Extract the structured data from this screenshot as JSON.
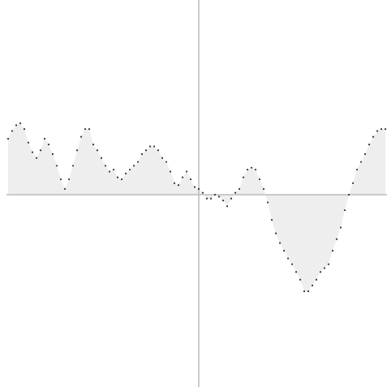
{
  "chart_data": {
    "type": "area",
    "x": [
      -235,
      -230,
      -225,
      -220,
      -215,
      -210,
      -205,
      -200,
      -195,
      -190,
      -185,
      -180,
      -175,
      -170,
      -165,
      -160,
      -155,
      -150,
      -145,
      -140,
      -135,
      -130,
      -125,
      -120,
      -115,
      -110,
      -105,
      -100,
      -95,
      -90,
      -85,
      -80,
      -75,
      -70,
      -65,
      -60,
      -55,
      -50,
      -45,
      -40,
      -35,
      -30,
      -25,
      -20,
      -15,
      -10,
      -5,
      0,
      5,
      10,
      15,
      20,
      25,
      30,
      35,
      40,
      45,
      50,
      55,
      60,
      65,
      70,
      75,
      80,
      85,
      90,
      95,
      100,
      105,
      110,
      115,
      120,
      125,
      130,
      135,
      140,
      145,
      150,
      155,
      160,
      165,
      170,
      175,
      180,
      185,
      190,
      195,
      200,
      205,
      210,
      215,
      220,
      225,
      230
    ],
    "series": [
      {
        "color": "#333333",
        "fill": "#eeeeee",
        "values": [
          0.29,
          0.33,
          0.36,
          0.37,
          0.34,
          0.27,
          0.22,
          0.19,
          0.23,
          0.29,
          0.26,
          0.21,
          0.15,
          0.08,
          0.03,
          0.08,
          0.15,
          0.23,
          0.3,
          0.34,
          0.34,
          0.26,
          0.23,
          0.19,
          0.15,
          0.12,
          0.13,
          0.09,
          0.08,
          0.11,
          0.13,
          0.15,
          0.17,
          0.21,
          0.23,
          0.25,
          0.25,
          0.23,
          0.19,
          0.17,
          0.12,
          0.06,
          0.05,
          0.09,
          0.12,
          0.08,
          0.04,
          0.03,
          0.01,
          -0.02,
          -0.02,
          0,
          -0.01,
          -0.03,
          -0.06,
          -0.02,
          0.01,
          0.03,
          0.09,
          0.13,
          0.14,
          0.13,
          0.08,
          0.03,
          -0.04,
          -0.13,
          -0.2,
          -0.25,
          -0.29,
          -0.33,
          -0.36,
          -0.4,
          -0.44,
          -0.5,
          -0.5,
          -0.47,
          -0.44,
          -0.4,
          -0.38,
          -0.36,
          -0.29,
          -0.23,
          -0.17,
          -0.08,
          0,
          0.06,
          0.13,
          0.17,
          0.21,
          0.26,
          0.3,
          0.33,
          0.34,
          0.34
        ]
      }
    ],
    "xlim": [
      -237,
      237
    ],
    "ylim": [
      -1,
      1
    ],
    "axis_color": "#bbbbbb"
  }
}
